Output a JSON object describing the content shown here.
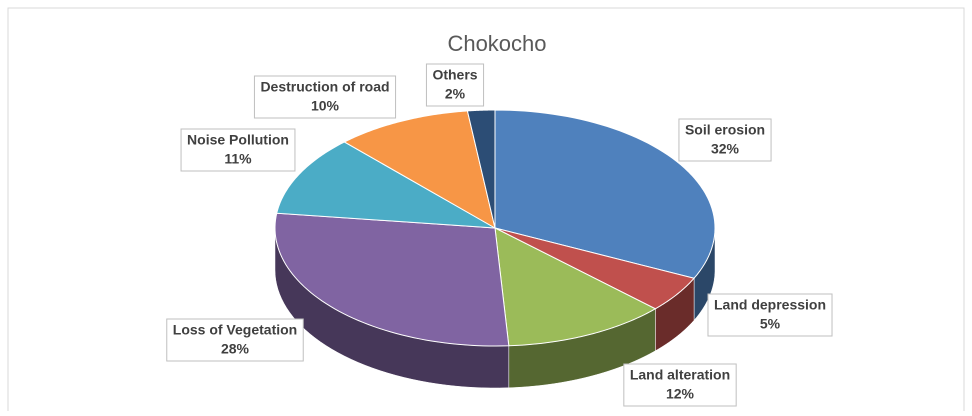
{
  "chart_data": {
    "type": "pie",
    "title": "Chokocho",
    "categories": [
      "Soil erosion",
      "Land depression",
      "Land alteration",
      "Loss of Vegetation",
      "Noise Pollution",
      "Destruction of road",
      "Others"
    ],
    "values": [
      32,
      5,
      12,
      28,
      11,
      10,
      2
    ],
    "value_labels": [
      "32%",
      "5%",
      "12%",
      "28%",
      "11%",
      "10%",
      "2%"
    ],
    "colors": [
      "#4f81bd",
      "#c0504d",
      "#9bbb59",
      "#8064a2",
      "#4bacc6",
      "#f79646",
      "#2c4d75"
    ]
  }
}
